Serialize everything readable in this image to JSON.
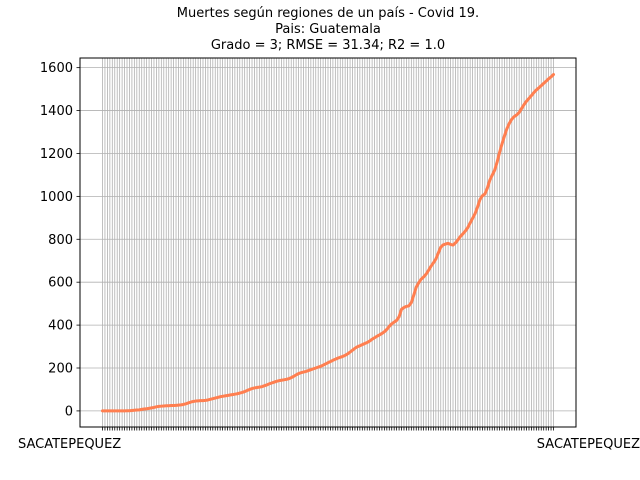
{
  "chart_data": {
    "type": "line",
    "title_lines": [
      "Muertes según regiones de un país - Covid 19.",
      "Pais: Guatemala",
      "Grado = 3; RMSE = 31.34; R2 = 1.0"
    ],
    "xlabel": "",
    "ylabel": "",
    "ylim": [
      -75,
      1645
    ],
    "yticks": [
      0,
      200,
      400,
      600,
      800,
      1000,
      1200,
      1400,
      1600
    ],
    "grid": true,
    "line_color": "#ff7f50",
    "grid_color": "#b0b0b0",
    "x_tick_labels_first": "SACATEPEQUEZ",
    "x_tick_labels_last": "SACATEPEQUEZ",
    "x_tick_label_note": "overlapping region names",
    "y": [
      0,
      0,
      0,
      0,
      0,
      0,
      0,
      0,
      0,
      0,
      1,
      1,
      2,
      3,
      4,
      5,
      7,
      9,
      10,
      12,
      14,
      16,
      19,
      21,
      22,
      23,
      24,
      24,
      25,
      25,
      26,
      27,
      28,
      30,
      33,
      37,
      41,
      44,
      46,
      47,
      48,
      48,
      49,
      51,
      54,
      57,
      60,
      63,
      66,
      68,
      70,
      72,
      74,
      76,
      78,
      80,
      83,
      86,
      90,
      95,
      100,
      104,
      107,
      109,
      111,
      113,
      117,
      121,
      126,
      130,
      134,
      138,
      141,
      143,
      145,
      147,
      150,
      155,
      161,
      168,
      174,
      178,
      181,
      184,
      188,
      192,
      196,
      200,
      204,
      208,
      213,
      219,
      225,
      230,
      236,
      241,
      246,
      250,
      254,
      259,
      266,
      274,
      283,
      292,
      299,
      304,
      309,
      314,
      319,
      326,
      334,
      341,
      348,
      354,
      361,
      369,
      380,
      394,
      406,
      414,
      422,
      439,
      474,
      482,
      487,
      490,
      505,
      540,
      577,
      597,
      614,
      624,
      637,
      655,
      674,
      690,
      708,
      736,
      763,
      774,
      778,
      781,
      776,
      773,
      783,
      797,
      813,
      825,
      838,
      854,
      876,
      898,
      920,
      950,
      985,
      1003,
      1011,
      1038,
      1075,
      1099,
      1122,
      1160,
      1205,
      1245,
      1282,
      1316,
      1341,
      1360,
      1372,
      1380,
      1391,
      1410,
      1428,
      1444,
      1457,
      1470,
      1484,
      1496,
      1506,
      1516,
      1527,
      1537,
      1548,
      1557,
      1568
    ],
    "series": [
      {
        "values_ref": "y"
      }
    ]
  }
}
